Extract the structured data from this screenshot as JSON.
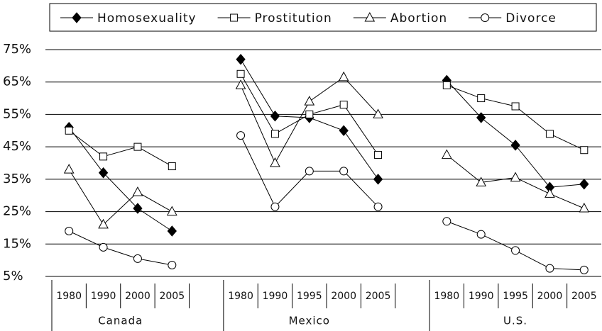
{
  "chart_data": {
    "type": "line",
    "categories": [
      "1980",
      "1990",
      "2000",
      "2005",
      null,
      "1980",
      "1990",
      "1995",
      "2000",
      "2005",
      null,
      "1980",
      "1990",
      "1995",
      "2000",
      "2005"
    ],
    "groups": [
      "Canada",
      "Mexico",
      "U.S."
    ],
    "series": [
      {
        "name": "Homosexuality",
        "color": "#000000",
        "marker": "diamond",
        "values": [
          51,
          37,
          26,
          19,
          null,
          72,
          54.5,
          54,
          50,
          35,
          null,
          65.5,
          54,
          45.5,
          32.5,
          33.5
        ]
      },
      {
        "name": "Prostitution",
        "color": "#000000",
        "marker": "square",
        "values": [
          50,
          42,
          45,
          39,
          null,
          67.5,
          49,
          55,
          58,
          42.5,
          null,
          64,
          60,
          57.5,
          49,
          44
        ]
      },
      {
        "name": "Abortion",
        "color": "#000000",
        "marker": "triangle",
        "values": [
          38,
          21,
          31,
          25,
          null,
          64,
          40,
          59,
          66.5,
          55,
          null,
          42.5,
          34,
          35.5,
          30.5,
          26
        ]
      },
      {
        "name": "Divorce",
        "color": "#000000",
        "marker": "circle",
        "values": [
          19,
          14,
          10.5,
          8.5,
          null,
          48.5,
          26.5,
          37.5,
          37.5,
          26.5,
          null,
          22,
          18,
          13,
          7.5,
          7
        ]
      }
    ],
    "ylim": [
      5,
      75
    ],
    "yticks": [
      {
        "value": 5,
        "label": "5%"
      },
      {
        "value": 15,
        "label": "15%"
      },
      {
        "value": 25,
        "label": "25%"
      },
      {
        "value": 35,
        "label": "35%"
      },
      {
        "value": 45,
        "label": "45%"
      },
      {
        "value": 55,
        "label": "55%"
      },
      {
        "value": 65,
        "label": "65%"
      },
      {
        "value": 75,
        "label": "75%"
      }
    ],
    "grid": true
  }
}
